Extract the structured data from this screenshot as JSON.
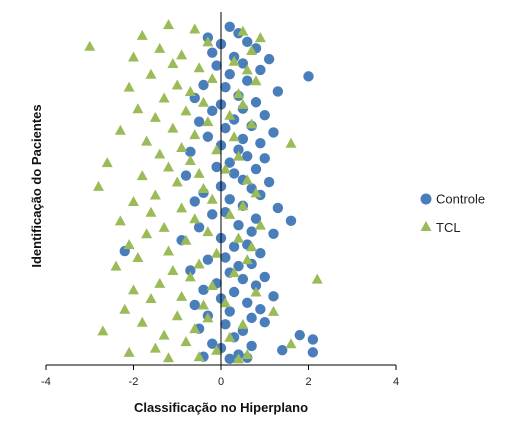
{
  "chart_data": {
    "type": "scatter",
    "xlabel": "Classificação no Hiperplano",
    "ylabel": "Identificação do Pacientes",
    "xlim": [
      -4,
      4
    ],
    "ylim": [
      0,
      160
    ],
    "xticks": [
      -4,
      -2,
      0,
      2,
      4
    ],
    "grid": false,
    "legend_position": "right",
    "series": [
      {
        "name": "Controle",
        "color": "#4a7ebb",
        "marker": "circle",
        "points": [
          [
            0.2,
            155
          ],
          [
            0.4,
            152
          ],
          [
            -0.3,
            150
          ],
          [
            0.6,
            148
          ],
          [
            0.0,
            147
          ],
          [
            0.8,
            145
          ],
          [
            -0.2,
            143
          ],
          [
            0.3,
            141
          ],
          [
            1.1,
            140
          ],
          [
            0.5,
            138
          ],
          [
            -0.1,
            137
          ],
          [
            0.9,
            135
          ],
          [
            0.2,
            133
          ],
          [
            2.0,
            132
          ],
          [
            0.6,
            130
          ],
          [
            -0.4,
            128
          ],
          [
            0.1,
            127
          ],
          [
            1.3,
            125
          ],
          [
            0.4,
            123
          ],
          [
            -0.6,
            122
          ],
          [
            0.8,
            120
          ],
          [
            0.0,
            119
          ],
          [
            0.5,
            117
          ],
          [
            -0.2,
            116
          ],
          [
            1.0,
            114
          ],
          [
            0.3,
            112
          ],
          [
            -0.5,
            111
          ],
          [
            0.7,
            109
          ],
          [
            0.1,
            108
          ],
          [
            1.2,
            106
          ],
          [
            -0.3,
            104
          ],
          [
            0.5,
            103
          ],
          [
            0.9,
            101
          ],
          [
            0.0,
            100
          ],
          [
            0.4,
            98
          ],
          [
            -0.7,
            97
          ],
          [
            0.6,
            95
          ],
          [
            1.0,
            94
          ],
          [
            0.2,
            92
          ],
          [
            -0.1,
            90
          ],
          [
            0.8,
            89
          ],
          [
            0.3,
            87
          ],
          [
            -0.8,
            86
          ],
          [
            0.5,
            84
          ],
          [
            1.1,
            83
          ],
          [
            0.0,
            81
          ],
          [
            0.7,
            80
          ],
          [
            -0.4,
            78
          ],
          [
            0.9,
            77
          ],
          [
            0.2,
            75
          ],
          [
            -0.6,
            74
          ],
          [
            0.5,
            72
          ],
          [
            1.3,
            71
          ],
          [
            0.1,
            69
          ],
          [
            -0.2,
            68
          ],
          [
            0.8,
            66
          ],
          [
            1.6,
            65
          ],
          [
            0.4,
            63
          ],
          [
            -0.5,
            62
          ],
          [
            0.7,
            60
          ],
          [
            1.2,
            59
          ],
          [
            0.0,
            57
          ],
          [
            -0.9,
            56
          ],
          [
            0.6,
            54
          ],
          [
            0.3,
            53
          ],
          [
            -2.2,
            51
          ],
          [
            0.9,
            50
          ],
          [
            0.1,
            48
          ],
          [
            -0.3,
            47
          ],
          [
            0.7,
            45
          ],
          [
            0.4,
            44
          ],
          [
            -0.7,
            42
          ],
          [
            0.2,
            41
          ],
          [
            1.0,
            39
          ],
          [
            0.5,
            38
          ],
          [
            -0.1,
            36
          ],
          [
            0.8,
            35
          ],
          [
            -0.4,
            33
          ],
          [
            0.3,
            32
          ],
          [
            1.2,
            30
          ],
          [
            0.0,
            29
          ],
          [
            0.6,
            27
          ],
          [
            -0.6,
            26
          ],
          [
            0.9,
            24
          ],
          [
            0.2,
            23
          ],
          [
            -0.3,
            21
          ],
          [
            0.7,
            20
          ],
          [
            1.0,
            18
          ],
          [
            0.1,
            17
          ],
          [
            -0.5,
            15
          ],
          [
            0.5,
            14
          ],
          [
            1.8,
            12
          ],
          [
            0.3,
            11
          ],
          [
            2.1,
            10
          ],
          [
            -0.2,
            8
          ],
          [
            0.7,
            7
          ],
          [
            0.0,
            6
          ],
          [
            1.4,
            5
          ],
          [
            2.1,
            4
          ],
          [
            0.4,
            3
          ],
          [
            -0.4,
            2
          ],
          [
            0.6,
            1.5
          ],
          [
            0.2,
            1
          ]
        ]
      },
      {
        "name": "TCL",
        "color": "#9bbb59",
        "marker": "triangle",
        "points": [
          [
            -1.2,
            156
          ],
          [
            -0.6,
            154
          ],
          [
            0.5,
            153
          ],
          [
            -1.8,
            151
          ],
          [
            0.9,
            150
          ],
          [
            -0.3,
            148
          ],
          [
            -3.0,
            146
          ],
          [
            -1.4,
            145
          ],
          [
            0.7,
            144
          ],
          [
            -0.9,
            142
          ],
          [
            -2.0,
            141
          ],
          [
            0.3,
            139
          ],
          [
            -1.1,
            138
          ],
          [
            -0.5,
            136
          ],
          [
            0.6,
            135
          ],
          [
            -1.6,
            133
          ],
          [
            -0.2,
            131
          ],
          [
            0.8,
            130
          ],
          [
            -1.0,
            128
          ],
          [
            -2.1,
            127
          ],
          [
            -0.7,
            125
          ],
          [
            0.4,
            124
          ],
          [
            -1.3,
            122
          ],
          [
            -0.4,
            120
          ],
          [
            0.5,
            119
          ],
          [
            -1.9,
            117
          ],
          [
            -0.8,
            116
          ],
          [
            0.2,
            114
          ],
          [
            -1.5,
            113
          ],
          [
            -0.3,
            111
          ],
          [
            0.7,
            110
          ],
          [
            -1.1,
            108
          ],
          [
            -2.3,
            107
          ],
          [
            -0.6,
            105
          ],
          [
            0.3,
            104
          ],
          [
            -1.7,
            102
          ],
          [
            1.6,
            101
          ],
          [
            -0.9,
            99
          ],
          [
            -0.1,
            98
          ],
          [
            -1.4,
            96
          ],
          [
            0.4,
            95
          ],
          [
            -0.7,
            93
          ],
          [
            -2.6,
            92
          ],
          [
            -1.2,
            90
          ],
          [
            0.1,
            89
          ],
          [
            -0.5,
            87
          ],
          [
            -1.8,
            86
          ],
          [
            0.6,
            84
          ],
          [
            -1.0,
            83
          ],
          [
            -2.8,
            81
          ],
          [
            -0.4,
            80
          ],
          [
            0.8,
            78
          ],
          [
            -1.5,
            77
          ],
          [
            -0.2,
            75
          ],
          [
            -2.0,
            74
          ],
          [
            0.5,
            72
          ],
          [
            -0.9,
            71
          ],
          [
            -1.6,
            69
          ],
          [
            0.2,
            68
          ],
          [
            -0.6,
            66
          ],
          [
            -2.3,
            65
          ],
          [
            0.9,
            63
          ],
          [
            -1.3,
            62
          ],
          [
            -0.3,
            60
          ],
          [
            -1.7,
            59
          ],
          [
            0.4,
            57
          ],
          [
            -0.8,
            56
          ],
          [
            -2.1,
            54
          ],
          [
            0.7,
            53
          ],
          [
            -1.2,
            51
          ],
          [
            -0.1,
            50
          ],
          [
            -1.9,
            48
          ],
          [
            0.6,
            47
          ],
          [
            -0.5,
            45
          ],
          [
            -2.4,
            44
          ],
          [
            -1.1,
            42
          ],
          [
            0.3,
            41
          ],
          [
            -0.7,
            39
          ],
          [
            2.2,
            38
          ],
          [
            -1.4,
            36
          ],
          [
            -0.2,
            35
          ],
          [
            -2.0,
            33
          ],
          [
            0.8,
            32
          ],
          [
            -0.9,
            30
          ],
          [
            -1.6,
            29
          ],
          [
            0.1,
            27
          ],
          [
            -0.4,
            26
          ],
          [
            -2.2,
            24
          ],
          [
            1.2,
            23
          ],
          [
            -1.0,
            21
          ],
          [
            -0.3,
            20
          ],
          [
            -1.8,
            18
          ],
          [
            0.5,
            17
          ],
          [
            -0.6,
            15
          ],
          [
            -2.7,
            14
          ],
          [
            -1.3,
            12
          ],
          [
            0.2,
            11
          ],
          [
            -0.8,
            9
          ],
          [
            1.6,
            8
          ],
          [
            -1.5,
            6
          ],
          [
            -0.1,
            5
          ],
          [
            -2.1,
            4
          ],
          [
            0.6,
            3
          ],
          [
            -0.5,
            2
          ],
          [
            -1.2,
            1.5
          ],
          [
            0.4,
            1
          ]
        ]
      }
    ]
  }
}
